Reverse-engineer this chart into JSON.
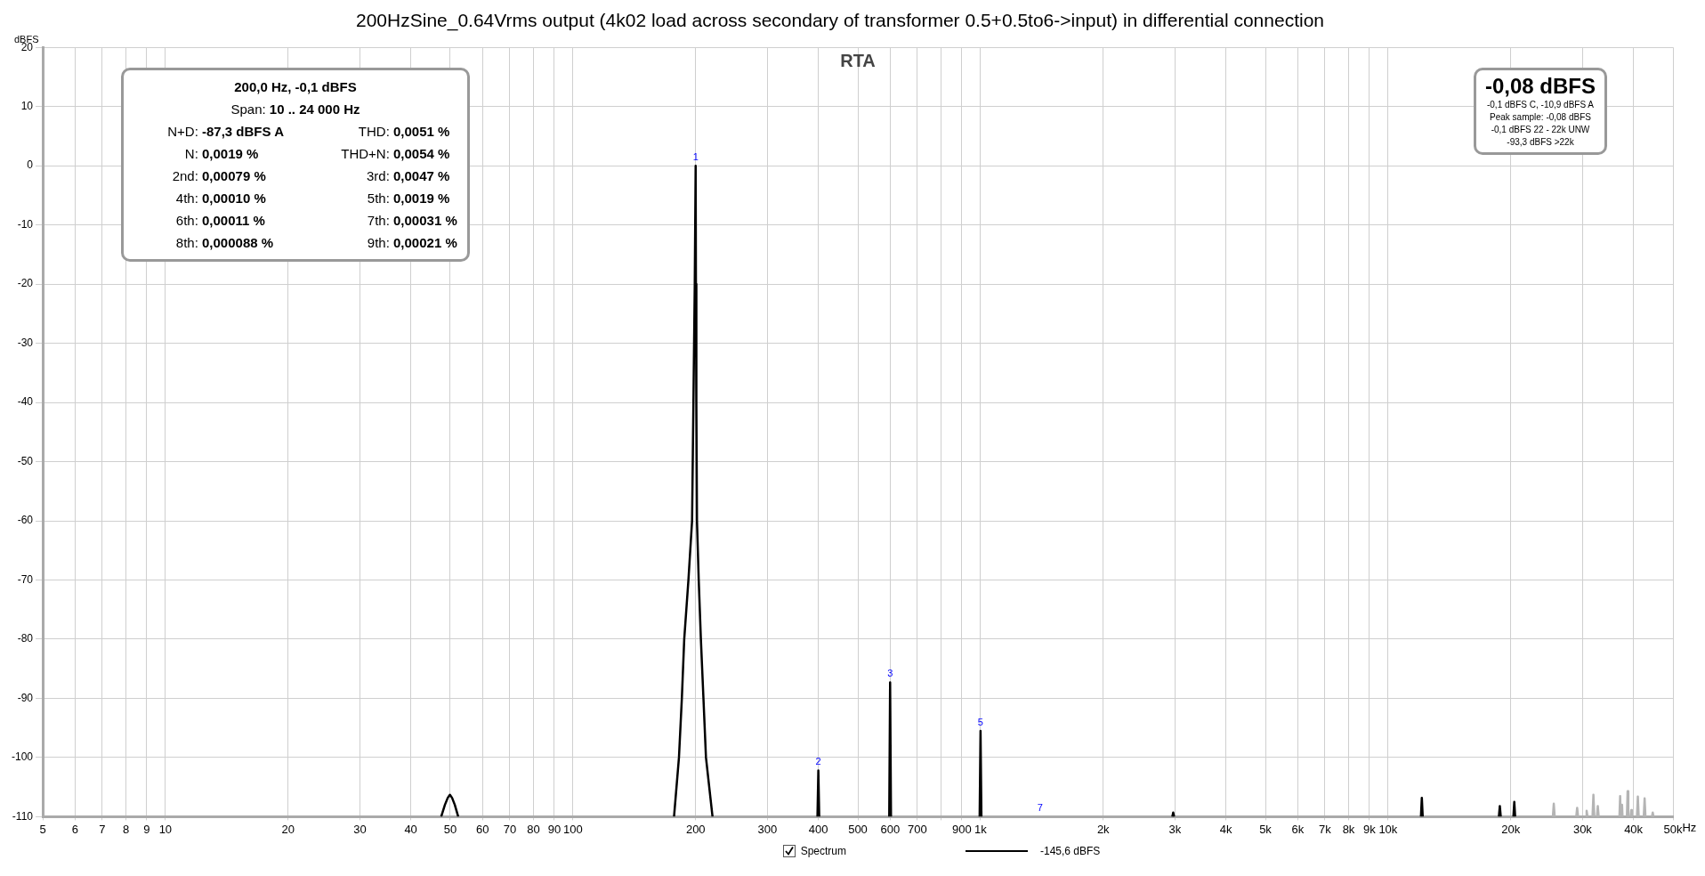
{
  "chart_data": {
    "type": "line",
    "title": "200HzSine_0.64Vrms output (4k02 load across secondary of transformer 0.5+0.5to6->input) in differential connection",
    "subtitle": "RTA",
    "ylabel": "dBFS",
    "xlabel": "Hz",
    "log": "x",
    "grid": true,
    "legend": "bottom",
    "marker": "none",
    "line_style": "solid",
    "xlim": [
      5,
      50000
    ],
    "ylim": [
      -110,
      20
    ],
    "xticks": [
      5,
      6,
      7,
      8,
      9,
      10,
      20,
      30,
      40,
      50,
      60,
      70,
      80,
      90,
      100,
      200,
      300,
      400,
      500,
      600,
      700,
      {
        "value": 800,
        "label": null
      },
      900,
      {
        "value": 1000,
        "label": "1k"
      },
      {
        "value": 2000,
        "label": "2k"
      },
      {
        "value": 3000,
        "label": "3k"
      },
      {
        "value": 4000,
        "label": "4k"
      },
      {
        "value": 5000,
        "label": "5k"
      },
      {
        "value": 6000,
        "label": "6k"
      },
      {
        "value": 7000,
        "label": "7k"
      },
      {
        "value": 8000,
        "label": "8k"
      },
      {
        "value": 9000,
        "label": "9k"
      },
      {
        "value": 10000,
        "label": "10k"
      },
      {
        "value": 20000,
        "label": "20k"
      },
      {
        "value": 30000,
        "label": "30k"
      },
      {
        "value": 40000,
        "label": "40k"
      },
      {
        "value": 50000,
        "label": "50k"
      }
    ],
    "yticks": [
      20,
      10,
      0,
      -10,
      -20,
      -30,
      -40,
      -50,
      -60,
      -70,
      -80,
      -90,
      -100,
      -110
    ],
    "series": [
      {
        "name": "Spectrum",
        "color": "#000000",
        "x": [
          47.5,
          48.5,
          49.3,
          49.9,
          50.5,
          51.3,
          52.3,
          100,
          177,
          182,
          185,
          187.5,
          192,
          196,
          197.5,
          199,
          200,
          200.3,
          200.8,
          201.5,
          203.5,
          206,
          209,
          212,
          220,
          300,
          398,
          400,
          402,
          500,
          597,
          600,
          603,
          800,
          995,
          1000,
          1005,
          2000,
          2955,
          2970,
          2985,
          8000,
          12040,
          12100,
          12160,
          15000,
          18700,
          18800,
          18900,
          19500,
          20300,
          20400,
          20500
        ],
        "values": [
          -110,
          -108,
          -106.8,
          -106.3,
          -106.8,
          -108,
          -110,
          null,
          -110,
          -100,
          -90,
          -80,
          -70,
          -60,
          -40,
          -20,
          0,
          -20,
          -40,
          -60,
          -70,
          -80,
          -90,
          -100,
          -110,
          null,
          -110,
          -102.2,
          -110,
          null,
          -110,
          -87.3,
          -110,
          null,
          -110,
          -95.5,
          -110,
          null,
          -110,
          -109.3,
          -110,
          null,
          -110,
          -106.8,
          -110,
          null,
          -110,
          -108.2,
          -110,
          null,
          -110,
          -107.5,
          -110
        ]
      },
      {
        "color": "#b4b4b4",
        "x": [
          25370,
          25500,
          25630,
          27000,
          28950,
          29100,
          29250,
          30000,
          30550,
          30700,
          30850,
          31300,
          31740,
          31900,
          32060,
          32300,
          32540,
          32700,
          32860,
          35000,
          36950,
          37100,
          37200,
          37300,
          37400,
          37500,
          37600,
          38100,
          38550,
          38700,
          38850,
          39100,
          39350,
          39500,
          39650,
          40200,
          40800,
          41000,
          41200,
          41800,
          42400,
          42600,
          42800,
          43500,
          44400,
          44600,
          44800
        ],
        "values": [
          -110,
          -107.8,
          -110,
          null,
          -110,
          -108.5,
          -110,
          null,
          -110,
          -109,
          -110,
          null,
          -110,
          -106.3,
          -110,
          null,
          -110,
          -108.2,
          -110,
          null,
          -110,
          -106.5,
          -110,
          null,
          -110,
          -108,
          -110,
          null,
          -110,
          -105.7,
          -110,
          null,
          -110,
          -108.9,
          -110,
          null,
          -110,
          -106.6,
          -110,
          null,
          -110,
          -106.9,
          -110,
          null,
          -110,
          -109.3,
          -110
        ]
      }
    ],
    "annotations": [
      "200,0 Hz, -0,1 dBFS",
      "Span: 10 .. 24 000 Hz",
      "N+D: -87,3 dBFS A",
      "THD: 0,0051 %",
      "N: 0,0019 %",
      "THD+N: 0,0054 %",
      "2nd: 0,00079 %",
      "3rd: 0,0047 %",
      "4th: 0,00010 %",
      "5th: 0,0019 %",
      "6th: 0,00011 %",
      "7th: 0,00031 %",
      "8th: 0,000088 %",
      "9th: 0,00021 %",
      "-0,08 dBFS",
      "-0,1 dBFS C, -10,9 dBFS A",
      "Peak sample: -0,08 dBFS",
      "-0,1 dBFS 22 - 22k UNW",
      "-93,3 dBFS >22k",
      "-145,6 dBFS",
      {
        "text": "1",
        "x": 200,
        "y": 0
      },
      {
        "text": "2",
        "x": 400,
        "y": -102.2
      },
      {
        "text": "3",
        "x": 600,
        "y": -87.3
      },
      {
        "text": "5",
        "x": 1000,
        "y": -95.5
      },
      "7"
    ]
  }
}
